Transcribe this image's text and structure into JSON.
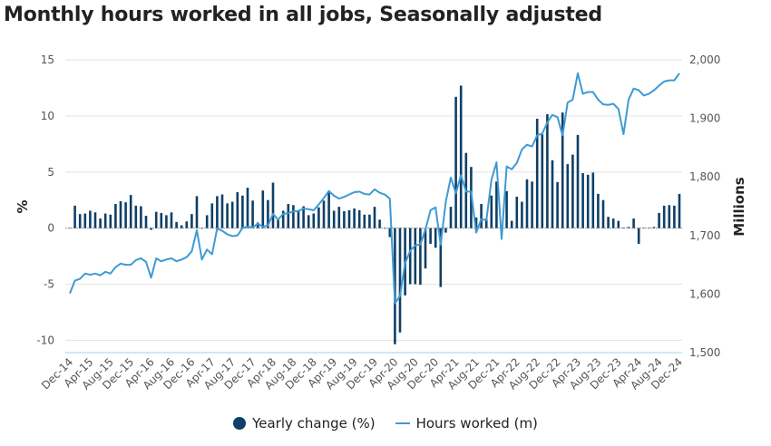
{
  "chart_data": {
    "type": "bar+line",
    "title": "Monthly hours worked in all jobs, Seasonally adjusted",
    "x_start": "Dec-14",
    "x_end": "Dec-24",
    "x_frequency": "monthly",
    "tick_labels": [
      "Dec-14",
      "Apr-15",
      "Aug-15",
      "Dec-15",
      "Apr-16",
      "Aug-16",
      "Dec-16",
      "Apr-17",
      "Aug-17",
      "Dec-17",
      "Apr-18",
      "Aug-18",
      "Dec-18",
      "Apr-19",
      "Aug-19",
      "Dec-19",
      "Apr-20",
      "Aug-20",
      "Dec-20",
      "Apr-21",
      "Aug-21",
      "Dec-21",
      "Apr-22",
      "Aug-22",
      "Dec-22",
      "Apr-23",
      "Aug-23",
      "Dec-23",
      "Apr-24",
      "Aug-24",
      "Dec-24"
    ],
    "ylabel_left": "%",
    "ylabel_right": "Millions",
    "ylim_left": [
      -11.1,
      15
    ],
    "yticks_left": [
      "15",
      "10",
      "5",
      "0",
      "-5",
      "-10"
    ],
    "ylim_right": [
      1500,
      2000
    ],
    "yticks_right": [
      "2,000",
      "1,900",
      "1,800",
      "1,700",
      "1,600",
      "1,500"
    ],
    "grid": true,
    "legend_position": "bottom",
    "series": [
      {
        "name": "Yearly change (%)",
        "type": "bar",
        "color": "#0f3f66",
        "values": [
          0,
          2.0,
          1.25,
          1.3,
          1.55,
          1.4,
          0.85,
          1.3,
          1.2,
          2.15,
          2.4,
          2.3,
          2.95,
          2.0,
          1.95,
          1.1,
          -0.15,
          1.45,
          1.35,
          1.15,
          1.4,
          0.55,
          0.25,
          0.6,
          1.25,
          2.85,
          -0.05,
          1.15,
          2.2,
          2.85,
          3.0,
          2.2,
          2.35,
          3.2,
          2.9,
          3.6,
          2.45,
          0.5,
          3.35,
          2.5,
          4.05,
          0.75,
          1.55,
          2.15,
          2.05,
          1.5,
          1.95,
          1.15,
          1.3,
          1.85,
          2.45,
          3.15,
          1.55,
          1.9,
          1.5,
          1.6,
          1.75,
          1.6,
          1.2,
          1.2,
          1.9,
          0.75,
          -0.05,
          -0.8,
          -10.35,
          -9.3,
          -6.0,
          -5.0,
          -5.0,
          -5.05,
          -3.6,
          -1.4,
          -1.75,
          -5.25,
          -0.4,
          1.9,
          11.7,
          12.7,
          6.7,
          5.45,
          0.95,
          2.15,
          0.85,
          2.9,
          4.15,
          0.1,
          3.3,
          0.65,
          2.8,
          2.35,
          4.35,
          4.15,
          9.75,
          8.35,
          10.15,
          6.05,
          4.1,
          10.3,
          5.7,
          6.55,
          8.3,
          4.9,
          4.75,
          4.95,
          3.05,
          2.5,
          1.0,
          0.85,
          0.65,
          0.05,
          0.1,
          0.85,
          -1.4,
          0.02,
          0.02,
          0.1,
          1.35,
          2.0,
          2.05,
          2.0,
          3.05
        ]
      },
      {
        "name": "Hours worked (m)",
        "type": "line",
        "color": "#3d9bd3",
        "values": [
          1601,
          1623,
          1626,
          1635,
          1633,
          1635,
          1632,
          1638,
          1635,
          1646,
          1652,
          1650,
          1650,
          1658,
          1661,
          1655,
          1628,
          1661,
          1656,
          1659,
          1661,
          1656,
          1659,
          1663,
          1673,
          1709,
          1659,
          1676,
          1668,
          1712,
          1708,
          1702,
          1699,
          1700,
          1713,
          1715,
          1714,
          1720,
          1715,
          1717,
          1737,
          1727,
          1737,
          1738,
          1741,
          1742,
          1746,
          1745,
          1743,
          1753,
          1764,
          1776,
          1768,
          1763,
          1766,
          1770,
          1774,
          1775,
          1771,
          1770,
          1779,
          1773,
          1770,
          1763,
          1584,
          1597,
          1653,
          1674,
          1683,
          1685,
          1710,
          1743,
          1748,
          1684,
          1757,
          1799,
          1772,
          1803,
          1775,
          1775,
          1705,
          1728,
          1726,
          1795,
          1825,
          1694,
          1818,
          1813,
          1824,
          1847,
          1855,
          1852,
          1871,
          1874,
          1893,
          1906,
          1902,
          1871,
          1927,
          1932,
          1977,
          1942,
          1945,
          1945,
          1932,
          1924,
          1923,
          1925,
          1916,
          1873,
          1932,
          1951,
          1948,
          1939,
          1942,
          1948,
          1956,
          1963,
          1965,
          1965,
          1977
        ]
      }
    ]
  }
}
